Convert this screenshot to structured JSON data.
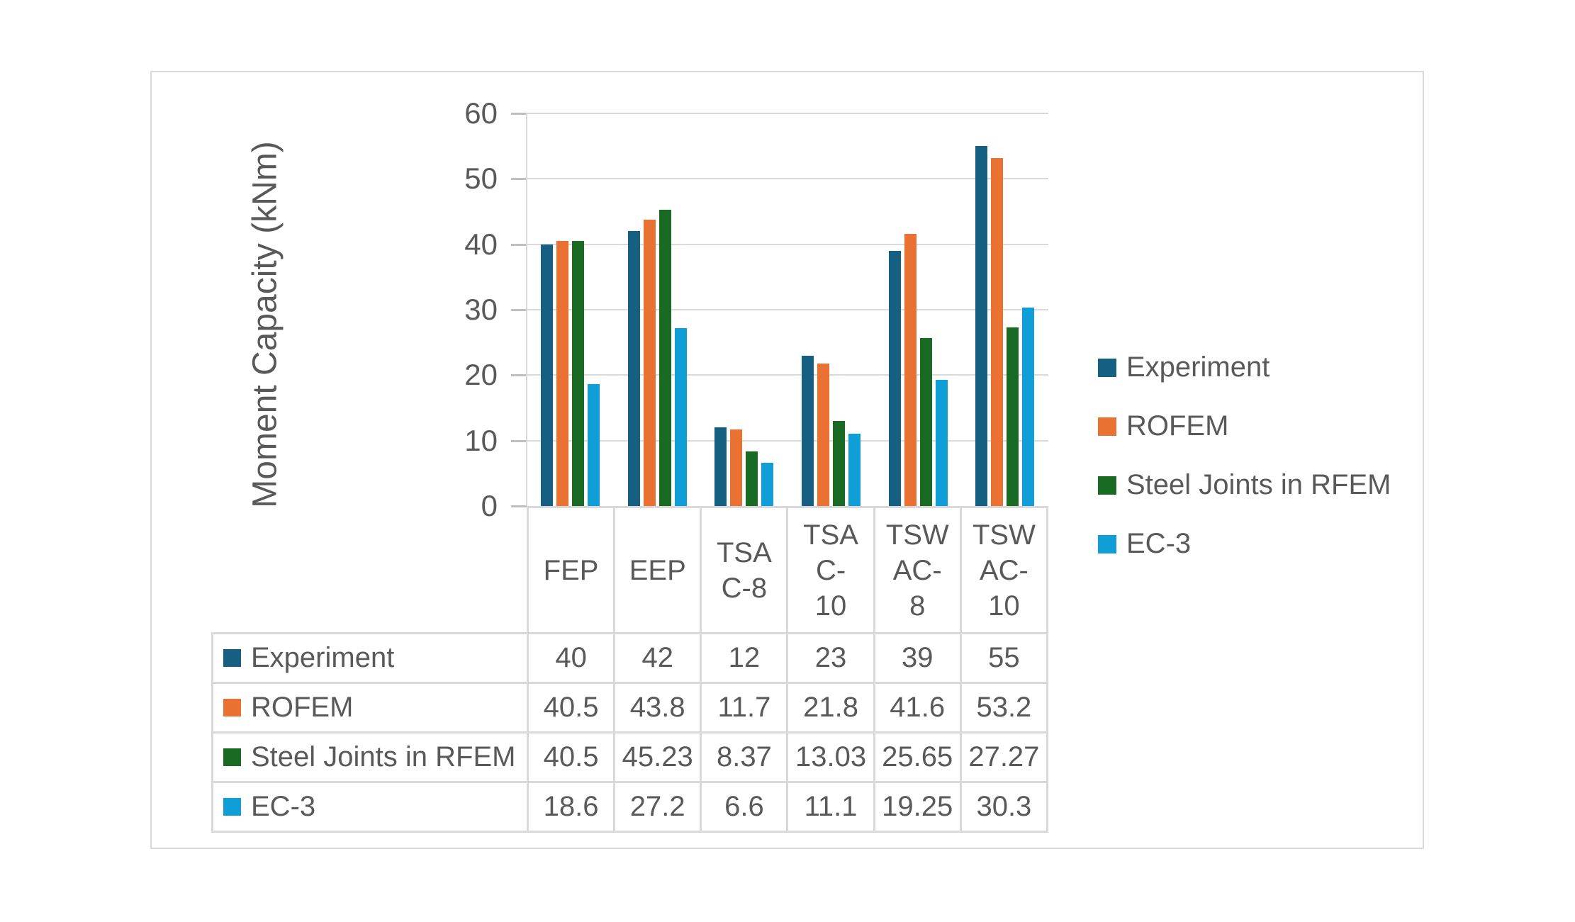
{
  "chart_data": {
    "type": "bar",
    "title": "",
    "ylabel": "Moment Capacity (kNm)",
    "xlabel": "",
    "ylim": [
      0,
      60
    ],
    "ytick_step": 10,
    "ytick_labels": [
      "60",
      "50",
      "40",
      "30",
      "20",
      "10",
      "0"
    ],
    "grid": "horizontal",
    "legend_position": "right",
    "data_table": "shown below axis with legend keys",
    "categories": [
      "FEP",
      "EEP",
      "TSA C-8",
      "TSA C-10",
      "TSW AC-8",
      "TSW AC-10"
    ],
    "category_display_lines": [
      [
        "FEP"
      ],
      [
        "EEP"
      ],
      [
        "TSA",
        "C-8"
      ],
      [
        "TSA",
        "C-",
        "10"
      ],
      [
        "TSW",
        "AC-",
        "8"
      ],
      [
        "TSW",
        "AC-",
        "10"
      ]
    ],
    "series": [
      {
        "name": "Experiment",
        "color": "#156082",
        "values": [
          40,
          42,
          12,
          23,
          39,
          55
        ]
      },
      {
        "name": "ROFEM",
        "color": "#E97132",
        "values": [
          40.5,
          43.8,
          11.7,
          21.8,
          41.6,
          53.2
        ]
      },
      {
        "name": "Steel Joints in RFEM",
        "color": "#196B24",
        "values": [
          40.5,
          45.23,
          8.37,
          13.03,
          25.65,
          27.27
        ]
      },
      {
        "name": "EC-3",
        "color": "#0F9ED5",
        "values": [
          18.6,
          27.2,
          6.6,
          11.1,
          19.25,
          30.3
        ]
      }
    ],
    "colors": {
      "text": "#595959",
      "gridline": "#D9D9D9",
      "tick": "#BFBFBF",
      "table_border": "#D9D9D9",
      "frame_border": "#D9D9D9"
    }
  }
}
